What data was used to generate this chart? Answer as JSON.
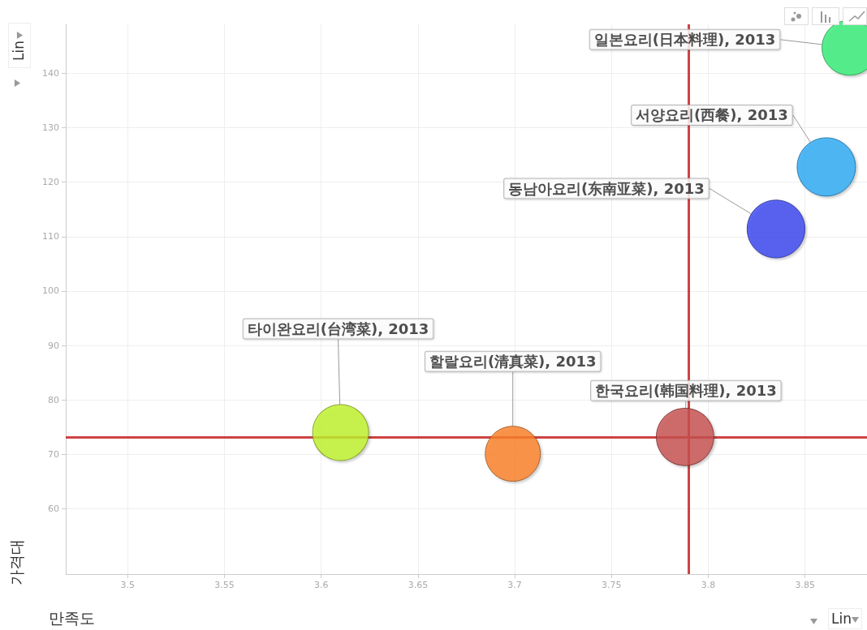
{
  "chart_data": {
    "type": "bubble",
    "xlabel": "만족도",
    "ylabel": "가격대",
    "xlim": [
      3.468,
      3.882
    ],
    "ylim": [
      48,
      149
    ],
    "xticks": [
      3.5,
      3.55,
      3.6,
      3.65,
      3.7,
      3.75,
      3.8,
      3.85
    ],
    "yticks": [
      60,
      70,
      80,
      90,
      100,
      110,
      120,
      130,
      140
    ],
    "grid": true,
    "legend": false,
    "series": [
      {
        "name": "일본요리(日本料理), 2013",
        "color": "#33ee77",
        "x": [
          3.873
        ],
        "values": [
          144.7
        ],
        "sizes": [
          0.89
        ]
      },
      {
        "name": "서양요리(西餐), 2013",
        "color": "#2aaaf5",
        "x": [
          3.861
        ],
        "values": [
          122.8
        ],
        "sizes": [
          1
        ]
      },
      {
        "name": "동남아요리(东南亚菜), 2013",
        "color": "#3a44f0",
        "x": [
          3.835
        ],
        "values": [
          111.4
        ],
        "sizes": [
          0.98
        ]
      },
      {
        "name": "타이완요리(台湾菜), 2013",
        "color": "#bff22a",
        "x": [
          3.61
        ],
        "values": [
          74.0
        ],
        "sizes": [
          0.92
        ]
      },
      {
        "name": "할랄요리(清真菜), 2013",
        "color": "#fb7f28",
        "x": [
          3.699
        ],
        "values": [
          70.1
        ],
        "sizes": [
          0.89
        ]
      },
      {
        "name": "한국요리(韩国料理), 2013",
        "color": "#c84f4f",
        "x": [
          3.788
        ],
        "values": [
          73.2
        ],
        "sizes": [
          0.97
        ]
      }
    ],
    "ref_lines": [
      {
        "axis": "x",
        "value": 3.79,
        "color": "#cc4444"
      },
      {
        "axis": "y",
        "value": 73.1,
        "color": "#cc4444"
      }
    ],
    "annotations": [
      "Lin",
      "Lin"
    ]
  }
}
